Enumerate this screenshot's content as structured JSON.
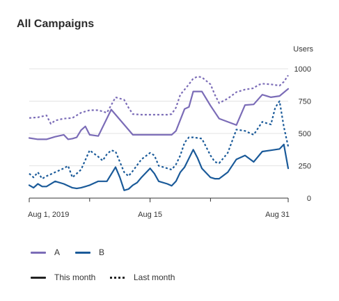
{
  "chart_data": {
    "type": "line",
    "title": "All Campaigns",
    "ylabel": "Users",
    "ylim": [
      0,
      1000
    ],
    "yticks": [
      "0",
      "250",
      "500",
      "750",
      "1000"
    ],
    "xticks": [
      "Aug 1, 2019",
      "Aug 15",
      "Aug 31"
    ],
    "xrange_days": [
      1,
      31
    ],
    "colors": {
      "A": "#7b6cb7",
      "B": "#1a5a99"
    },
    "legend": {
      "placement": "bottom-left",
      "series_labels": [
        "A",
        "B"
      ],
      "style_labels": [
        "This month",
        "Last month"
      ]
    },
    "series": [
      {
        "name": "A",
        "style": "This month",
        "x": [
          1,
          2,
          3,
          4,
          5,
          5.5,
          6,
          6.5,
          7,
          7.5,
          8,
          9,
          10.5,
          13,
          17.5,
          18,
          19,
          19.5,
          20,
          20.5,
          21,
          22,
          22.5,
          23,
          25,
          26,
          27,
          28,
          29,
          30,
          31
        ],
        "y": [
          465,
          455,
          455,
          475,
          490,
          455,
          460,
          470,
          525,
          555,
          490,
          480,
          685,
          490,
          490,
          520,
          690,
          705,
          825,
          825,
          825,
          715,
          665,
          615,
          565,
          720,
          725,
          800,
          780,
          790,
          845
        ]
      },
      {
        "name": "B",
        "style": "This month",
        "x": [
          1,
          1.5,
          2,
          2.5,
          3,
          4,
          5,
          6,
          6.5,
          7,
          7.5,
          8,
          9,
          10,
          11,
          11.5,
          12,
          12.5,
          13,
          13.5,
          14,
          15,
          15.5,
          16,
          17,
          17.5,
          18,
          18.5,
          19,
          20,
          20.5,
          21,
          22,
          22.5,
          23,
          24,
          25,
          26,
          27,
          28,
          29,
          30,
          30.5,
          31
        ],
        "y": [
          100,
          80,
          110,
          90,
          90,
          130,
          110,
          80,
          75,
          80,
          90,
          100,
          130,
          130,
          240,
          160,
          60,
          70,
          100,
          120,
          160,
          230,
          190,
          130,
          110,
          95,
          130,
          200,
          240,
          375,
          310,
          230,
          160,
          150,
          150,
          200,
          300,
          330,
          280,
          360,
          370,
          380,
          415,
          230
        ]
      },
      {
        "name": "A",
        "style": "Last month",
        "x": [
          1,
          2,
          3,
          3.5,
          4,
          5,
          6,
          7,
          8,
          9,
          10,
          10.5,
          11,
          12,
          12.5,
          13,
          14,
          15,
          16,
          17,
          17.5,
          18,
          18.5,
          19,
          19.5,
          20,
          20.5,
          21,
          22,
          22.5,
          23,
          24,
          25,
          26,
          27,
          27.5,
          28,
          29,
          30,
          30.5,
          31
        ],
        "y": [
          620,
          625,
          640,
          575,
          600,
          615,
          620,
          660,
          680,
          680,
          660,
          720,
          780,
          760,
          700,
          650,
          645,
          645,
          645,
          645,
          650,
          700,
          800,
          840,
          880,
          925,
          940,
          935,
          880,
          800,
          735,
          770,
          820,
          840,
          850,
          875,
          885,
          880,
          870,
          900,
          950
        ]
      },
      {
        "name": "B",
        "style": "Last month",
        "x": [
          1,
          1.5,
          2,
          2.5,
          3,
          4,
          5,
          5.5,
          6,
          7,
          8,
          9,
          9.5,
          10,
          10.5,
          11,
          12,
          12.5,
          13,
          14,
          15,
          15.5,
          16,
          17,
          17.5,
          18,
          18.5,
          19,
          19.5,
          20,
          21,
          22,
          22.5,
          23,
          24,
          25,
          26,
          27,
          28,
          29,
          29.5,
          30,
          30.5,
          31
        ],
        "y": [
          190,
          160,
          200,
          150,
          170,
          200,
          230,
          250,
          160,
          220,
          370,
          320,
          290,
          340,
          370,
          360,
          200,
          170,
          210,
          300,
          350,
          330,
          250,
          230,
          220,
          260,
          330,
          430,
          470,
          470,
          460,
          330,
          280,
          270,
          350,
          530,
          520,
          490,
          590,
          570,
          700,
          750,
          550,
          400
        ]
      }
    ]
  }
}
